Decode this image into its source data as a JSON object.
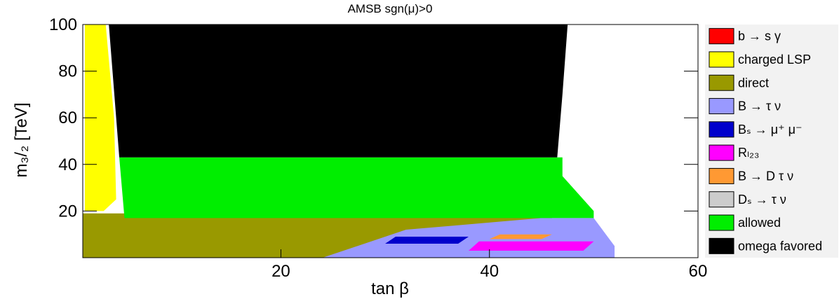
{
  "chart_data": {
    "type": "region",
    "title": "AMSB    sgn(μ)>0",
    "x_label": "tan β",
    "y_label": "m₃/₂ [TeV]",
    "xlim": [
      1,
      60
    ],
    "ylim": [
      0,
      100
    ],
    "xticks": [
      20,
      40,
      60
    ],
    "yticks": [
      20,
      40,
      60,
      80,
      100
    ],
    "series": [
      {
        "name": "b → s γ",
        "color": "#ff0000"
      },
      {
        "name": "charged LSP",
        "color": "#ffff00",
        "x": [
          1.2,
          1.2,
          3.2,
          4.0,
          4.2,
          3.0
        ],
        "y": [
          20,
          100,
          100,
          60,
          25,
          20
        ]
      },
      {
        "name": "direct",
        "color": "#999900",
        "x": [
          1,
          1,
          46,
          46
        ],
        "y": [
          0,
          19,
          19,
          0
        ]
      },
      {
        "name": "B → τ ν",
        "color": "#9999ff",
        "x": [
          24,
          32,
          45,
          50,
          52,
          52
        ],
        "y": [
          0,
          12,
          17,
          17,
          5,
          0
        ]
      },
      {
        "name": "Bₛ → μ⁺ μ⁻",
        "color": "#0000cc",
        "x": [
          30,
          31,
          38,
          37
        ],
        "y": [
          6,
          9,
          9,
          6
        ]
      },
      {
        "name": "Rₗ₂₃",
        "color": "#ff00ff",
        "x": [
          38,
          39,
          50,
          49
        ],
        "y": [
          3,
          7,
          7,
          3
        ]
      },
      {
        "name": "B → D τ ν",
        "color": "#ff9933",
        "x": [
          40,
          41,
          46,
          45
        ],
        "y": [
          8,
          10,
          10,
          8
        ]
      },
      {
        "name": "Dₛ → τ ν",
        "color": "#cccccc"
      },
      {
        "name": "allowed",
        "color": "#00ee00",
        "x": [
          5,
          4.5,
          47,
          47,
          50,
          50
        ],
        "y": [
          17,
          43,
          43,
          35,
          20,
          17
        ]
      },
      {
        "name": "omega favored",
        "color": "#000000",
        "x": [
          4.5,
          3.5,
          47.5,
          47,
          46.5
        ],
        "y": [
          43,
          100,
          100,
          70,
          43
        ]
      }
    ],
    "legend": "right"
  }
}
